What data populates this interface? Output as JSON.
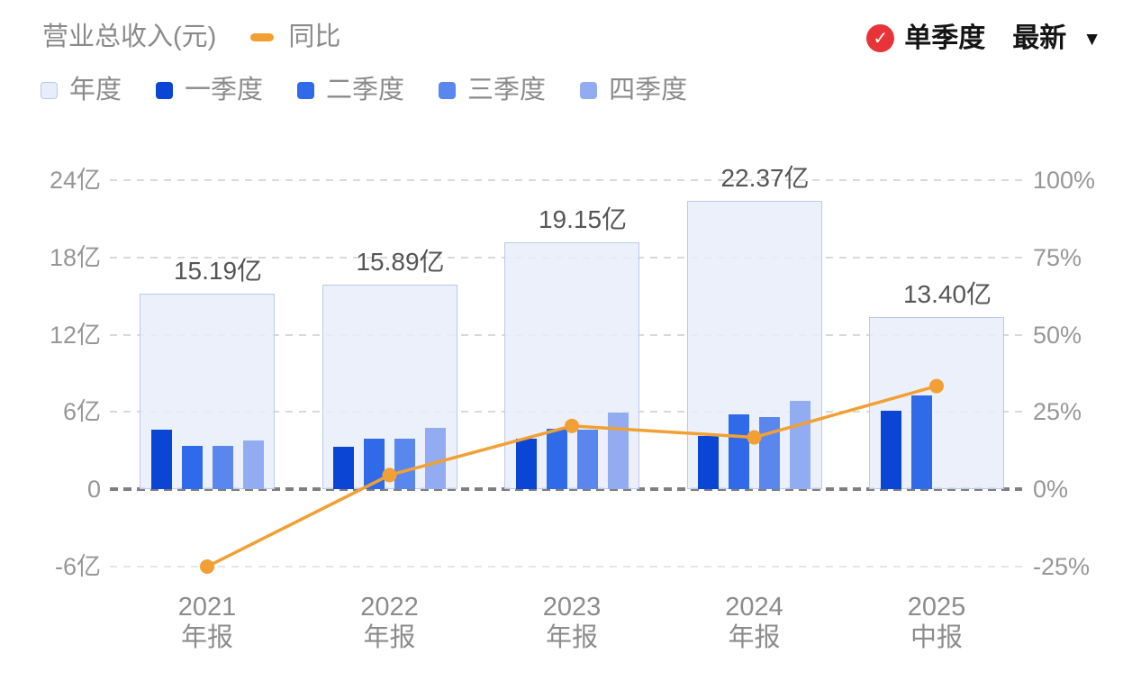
{
  "colors": {
    "accent_orange": "#F2A033",
    "badge_red": "#E73438",
    "text_gray": "#8A8A8A",
    "text_dark": "#141414",
    "bar_label": "#555555",
    "annual_fill": "#E7EDFA",
    "annual_border": "#BCC9EE"
  },
  "header": {
    "title": "营业总收入(元)",
    "yoy_label": "同比",
    "controls": {
      "check_icon": "✓",
      "single_quarter": "单季度",
      "latest": "最新",
      "dropdown_arrow": "▼"
    }
  },
  "chart_data": {
    "type": "bar",
    "title": "营业总收入(元)",
    "unit": "亿",
    "legend_position": "top",
    "grid": true,
    "categories": [
      {
        "year": "2021",
        "report": "年报"
      },
      {
        "year": "2022",
        "report": "年报"
      },
      {
        "year": "2023",
        "report": "年报"
      },
      {
        "year": "2024",
        "report": "年报"
      },
      {
        "year": "2025",
        "report": "中报"
      }
    ],
    "series": [
      {
        "key": "annual",
        "name": "年度",
        "color": "#E7EDFA",
        "border_color": "#BCC9EE",
        "values": [
          15.19,
          15.89,
          19.15,
          22.37,
          13.4
        ],
        "value_labels": [
          "15.19亿",
          "15.89亿",
          "19.15亿",
          "22.37亿",
          "13.40亿"
        ]
      },
      {
        "key": "q1",
        "name": "一季度",
        "color": "#0B45D6",
        "values": [
          4.6,
          3.3,
          3.9,
          4.15,
          6.1
        ]
      },
      {
        "key": "q2",
        "name": "二季度",
        "color": "#2F6BE8",
        "values": [
          3.4,
          3.9,
          4.7,
          5.8,
          7.3
        ]
      },
      {
        "key": "q3",
        "name": "三季度",
        "color": "#5A87EE",
        "values": [
          3.4,
          3.9,
          4.6,
          5.6,
          null
        ]
      },
      {
        "key": "q4",
        "name": "四季度",
        "color": "#92ACF2",
        "values": [
          3.8,
          4.8,
          5.95,
          6.85,
          null
        ]
      }
    ],
    "line_series": {
      "name": "同比",
      "axis": "right",
      "unit": "%",
      "color": "#F2A033",
      "values": [
        -25.0,
        4.6,
        20.5,
        16.8,
        33.4
      ]
    },
    "y_left": {
      "min": -6,
      "max": 24,
      "ticks": [
        {
          "value": 24,
          "label": "24亿"
        },
        {
          "value": 18,
          "label": "18亿"
        },
        {
          "value": 12,
          "label": "12亿"
        },
        {
          "value": 6,
          "label": "6亿"
        },
        {
          "value": 0,
          "label": "0"
        },
        {
          "value": -6,
          "label": "-6亿"
        }
      ]
    },
    "y_right": {
      "min": -25,
      "max": 100,
      "ticks": [
        {
          "value": 100,
          "label": "100%"
        },
        {
          "value": 75,
          "label": "75%"
        },
        {
          "value": 50,
          "label": "50%"
        },
        {
          "value": 25,
          "label": "25%"
        },
        {
          "value": 0,
          "label": "0%"
        },
        {
          "value": -25,
          "label": "-25%"
        }
      ]
    }
  }
}
